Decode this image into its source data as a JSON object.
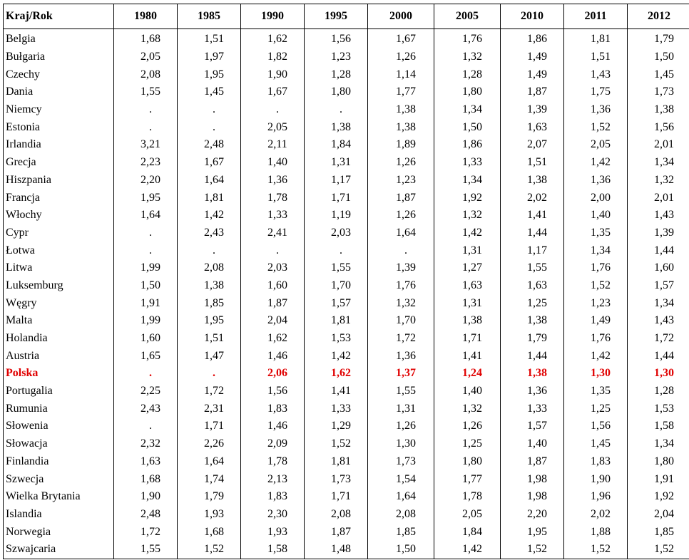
{
  "table": {
    "header": [
      "Kraj/Rok",
      "1980",
      "1985",
      "1990",
      "1995",
      "2000",
      "2005",
      "2010",
      "2011",
      "2012"
    ],
    "highlight_row": "Polska",
    "highlight_color": "#e00000",
    "rows": [
      [
        "Belgia",
        "1,68",
        "1,51",
        "1,62",
        "1,56",
        "1,67",
        "1,76",
        "1,86",
        "1,81",
        "1,79"
      ],
      [
        "Bułgaria",
        "2,05",
        "1,97",
        "1,82",
        "1,23",
        "1,26",
        "1,32",
        "1,49",
        "1,51",
        "1,50"
      ],
      [
        "Czechy",
        "2,08",
        "1,95",
        "1,90",
        "1,28",
        "1,14",
        "1,28",
        "1,49",
        "1,43",
        "1,45"
      ],
      [
        "Dania",
        "1,55",
        "1,45",
        "1,67",
        "1,80",
        "1,77",
        "1,80",
        "1,87",
        "1,75",
        "1,73"
      ],
      [
        "Niemcy",
        ".",
        ".",
        ".",
        ".",
        "1,38",
        "1,34",
        "1,39",
        "1,36",
        "1,38"
      ],
      [
        "Estonia",
        ".",
        ".",
        "2,05",
        "1,38",
        "1,38",
        "1,50",
        "1,63",
        "1,52",
        "1,56"
      ],
      [
        "Irlandia",
        "3,21",
        "2,48",
        "2,11",
        "1,84",
        "1,89",
        "1,86",
        "2,07",
        "2,05",
        "2,01"
      ],
      [
        "Grecja",
        "2,23",
        "1,67",
        "1,40",
        "1,31",
        "1,26",
        "1,33",
        "1,51",
        "1,42",
        "1,34"
      ],
      [
        "Hiszpania",
        "2,20",
        "1,64",
        "1,36",
        "1,17",
        "1,23",
        "1,34",
        "1,38",
        "1,36",
        "1,32"
      ],
      [
        "Francja",
        "1,95",
        "1,81",
        "1,78",
        "1,71",
        "1,87",
        "1,92",
        "2,02",
        "2,00",
        "2,01"
      ],
      [
        "Włochy",
        "1,64",
        "1,42",
        "1,33",
        "1,19",
        "1,26",
        "1,32",
        "1,41",
        "1,40",
        "1,43"
      ],
      [
        "Cypr",
        ".",
        "2,43",
        "2,41",
        "2,03",
        "1,64",
        "1,42",
        "1,44",
        "1,35",
        "1,39"
      ],
      [
        "Łotwa",
        ".",
        ".",
        ".",
        ".",
        ".",
        "1,31",
        "1,17",
        "1,34",
        "1,44"
      ],
      [
        "Litwa",
        "1,99",
        "2,08",
        "2,03",
        "1,55",
        "1,39",
        "1,27",
        "1,55",
        "1,76",
        "1,60"
      ],
      [
        "Luksemburg",
        "1,50",
        "1,38",
        "1,60",
        "1,70",
        "1,76",
        "1,63",
        "1,63",
        "1,52",
        "1,57"
      ],
      [
        "Węgry",
        "1,91",
        "1,85",
        "1,87",
        "1,57",
        "1,32",
        "1,31",
        "1,25",
        "1,23",
        "1,34"
      ],
      [
        "Malta",
        "1,99",
        "1,95",
        "2,04",
        "1,81",
        "1,70",
        "1,38",
        "1,38",
        "1,49",
        "1,43"
      ],
      [
        "Holandia",
        "1,60",
        "1,51",
        "1,62",
        "1,53",
        "1,72",
        "1,71",
        "1,79",
        "1,76",
        "1,72"
      ],
      [
        "Austria",
        "1,65",
        "1,47",
        "1,46",
        "1,42",
        "1,36",
        "1,41",
        "1,44",
        "1,42",
        "1,44"
      ],
      [
        "Polska",
        ".",
        ".",
        "2,06",
        "1,62",
        "1,37",
        "1,24",
        "1,38",
        "1,30",
        "1,30"
      ],
      [
        "Portugalia",
        "2,25",
        "1,72",
        "1,56",
        "1,41",
        "1,55",
        "1,40",
        "1,36",
        "1,35",
        "1,28"
      ],
      [
        "Rumunia",
        "2,43",
        "2,31",
        "1,83",
        "1,33",
        "1,31",
        "1,32",
        "1,33",
        "1,25",
        "1,53"
      ],
      [
        "Słowenia",
        ".",
        "1,71",
        "1,46",
        "1,29",
        "1,26",
        "1,26",
        "1,57",
        "1,56",
        "1,58"
      ],
      [
        "Słowacja",
        "2,32",
        "2,26",
        "2,09",
        "1,52",
        "1,30",
        "1,25",
        "1,40",
        "1,45",
        "1,34"
      ],
      [
        "Finlandia",
        "1,63",
        "1,64",
        "1,78",
        "1,81",
        "1,73",
        "1,80",
        "1,87",
        "1,83",
        "1,80"
      ],
      [
        "Szwecja",
        "1,68",
        "1,74",
        "2,13",
        "1,73",
        "1,54",
        "1,77",
        "1,98",
        "1,90",
        "1,91"
      ],
      [
        "Wielka Brytania",
        "1,90",
        "1,79",
        "1,83",
        "1,71",
        "1,64",
        "1,78",
        "1,98",
        "1,96",
        "1,92"
      ],
      [
        "Islandia",
        "2,48",
        "1,93",
        "2,30",
        "2,08",
        "2,08",
        "2,05",
        "2,20",
        "2,02",
        "2,04"
      ],
      [
        "Norwegia",
        "1,72",
        "1,68",
        "1,93",
        "1,87",
        "1,85",
        "1,84",
        "1,95",
        "1,88",
        "1,85"
      ],
      [
        "Szwajcaria",
        "1,55",
        "1,52",
        "1,58",
        "1,48",
        "1,50",
        "1,42",
        "1,52",
        "1,52",
        "1,52"
      ]
    ]
  }
}
